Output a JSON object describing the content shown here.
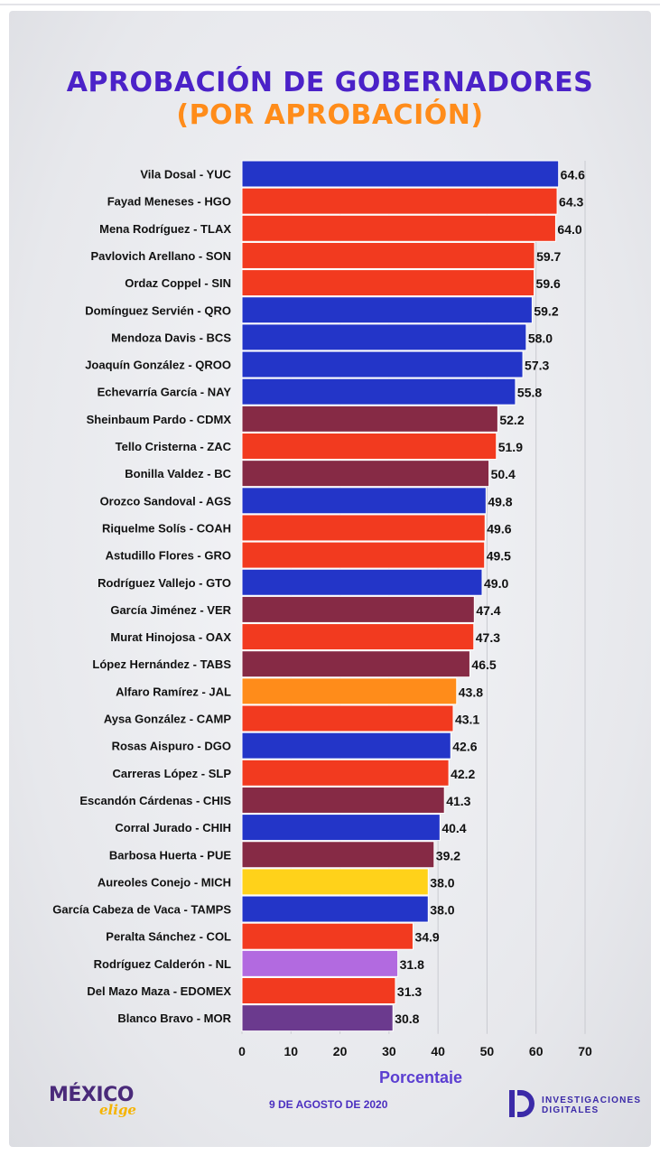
{
  "header": {
    "title": "APROBACIÓN DE GOBERNADORES",
    "subtitle": "(POR APROBACIÓN)"
  },
  "footer": {
    "logo_left_main": "MÉXICO",
    "logo_left_sub": "elige",
    "date": "9 DE AGOSTO DE 2020",
    "logo_right_line1": "INVESTIGACIONES",
    "logo_right_line2": "DIGITALES"
  },
  "colors": {
    "blue": "#2335c8",
    "red": "#f23a1f",
    "maroon": "#862a45",
    "orange": "#ff8c1a",
    "yellow": "#ffd21a",
    "lavender": "#b26ae0",
    "purple": "#6b3a8e"
  },
  "chart_data": {
    "type": "bar",
    "orientation": "horizontal",
    "xlabel": "Porcentaje",
    "xlim": [
      0,
      70
    ],
    "xticks": [
      0,
      10,
      20,
      30,
      40,
      50,
      60,
      70
    ],
    "grid": true,
    "categories": [
      "Vila Dosal - YUC",
      "Fayad Meneses - HGO",
      "Mena Rodríguez - TLAX",
      "Pavlovich Arellano - SON",
      "Ordaz Coppel - SIN",
      "Domínguez Servién - QRO",
      "Mendoza Davis - BCS",
      "Joaquín González - QROO",
      "Echevarría García - NAY",
      "Sheinbaum Pardo - CDMX",
      "Tello Cristerna - ZAC",
      "Bonilla Valdez - BC",
      "Orozco Sandoval - AGS",
      "Riquelme Solís - COAH",
      "Astudillo Flores - GRO",
      "Rodríguez Vallejo - GTO",
      "García Jiménez - VER",
      "Murat Hinojosa - OAX",
      "López Hernández - TABS",
      "Alfaro Ramírez - JAL",
      "Aysa González - CAMP",
      "Rosas Aispuro - DGO",
      "Carreras López - SLP",
      "Escandón Cárdenas - CHIS",
      "Corral Jurado - CHIH",
      "Barbosa Huerta - PUE",
      "Aureoles Conejo - MICH",
      "García Cabeza de Vaca - TAMPS",
      "Peralta Sánchez - COL",
      "Rodríguez Calderón - NL",
      "Del Mazo Maza - EDOMEX",
      "Blanco Bravo - MOR"
    ],
    "values": [
      64.6,
      64.3,
      64.0,
      59.7,
      59.6,
      59.2,
      58.0,
      57.3,
      55.8,
      52.2,
      51.9,
      50.4,
      49.8,
      49.6,
      49.5,
      49.0,
      47.4,
      47.3,
      46.5,
      43.8,
      43.1,
      42.6,
      42.2,
      41.3,
      40.4,
      39.2,
      38.0,
      38.0,
      34.9,
      31.8,
      31.3,
      30.8
    ],
    "value_labels": [
      "64.6",
      "64.3",
      "64.0",
      "59.7",
      "59.6",
      "59.2",
      "58.0",
      "57.3",
      "55.8",
      "52.2",
      "51.9",
      "50.4",
      "49.8",
      "49.6",
      "49.5",
      "49.0",
      "47.4",
      "47.3",
      "46.5",
      "43.8",
      "43.1",
      "42.6",
      "42.2",
      "41.3",
      "40.4",
      "39.2",
      "38.0",
      "38.0",
      "34.9",
      "31.8",
      "31.3",
      "30.8"
    ],
    "bar_colors": [
      "#2335c8",
      "#f23a1f",
      "#f23a1f",
      "#f23a1f",
      "#f23a1f",
      "#2335c8",
      "#2335c8",
      "#2335c8",
      "#2335c8",
      "#862a45",
      "#f23a1f",
      "#862a45",
      "#2335c8",
      "#f23a1f",
      "#f23a1f",
      "#2335c8",
      "#862a45",
      "#f23a1f",
      "#862a45",
      "#ff8c1a",
      "#f23a1f",
      "#2335c8",
      "#f23a1f",
      "#862a45",
      "#2335c8",
      "#862a45",
      "#ffd21a",
      "#2335c8",
      "#f23a1f",
      "#b26ae0",
      "#f23a1f",
      "#6b3a8e"
    ]
  }
}
